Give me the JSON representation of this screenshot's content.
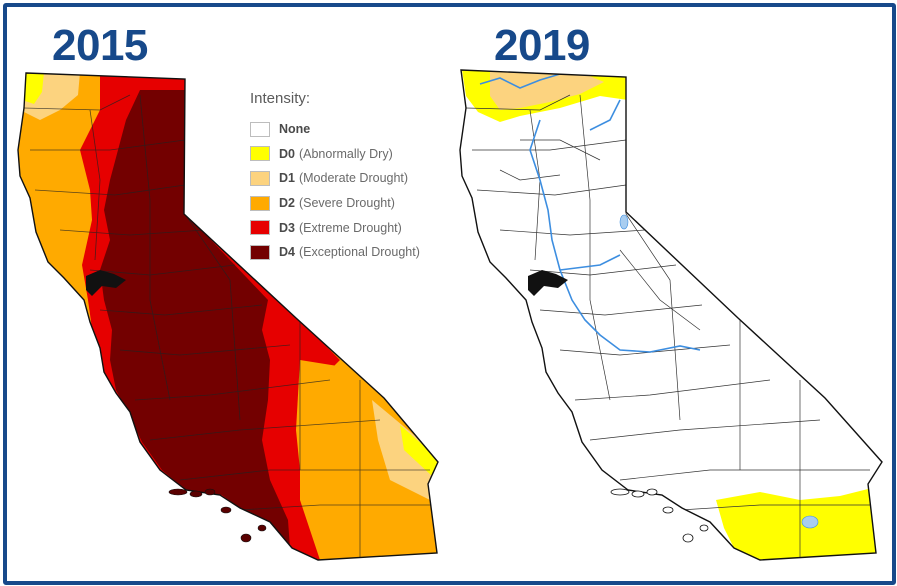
{
  "titles": {
    "left_year": "2015",
    "right_year": "2019"
  },
  "legend": {
    "title": "Intensity:",
    "items": [
      {
        "code": "None",
        "description": "",
        "color": "#ffffff"
      },
      {
        "code": "D0",
        "description": "(Abnormally Dry)",
        "color": "#ffff00"
      },
      {
        "code": "D1",
        "description": "(Moderate Drought)",
        "color": "#fcd37f"
      },
      {
        "code": "D2",
        "description": "(Severe Drought)",
        "color": "#ffaa00"
      },
      {
        "code": "D3",
        "description": "(Extreme Drought)",
        "color": "#e60000"
      },
      {
        "code": "D4",
        "description": "(Exceptional Drought)",
        "color": "#730000"
      }
    ]
  },
  "colors": {
    "frame": "#17498a",
    "year_text": "#17498a",
    "river": "#3d8ee0",
    "county_lines": "#333333"
  }
}
